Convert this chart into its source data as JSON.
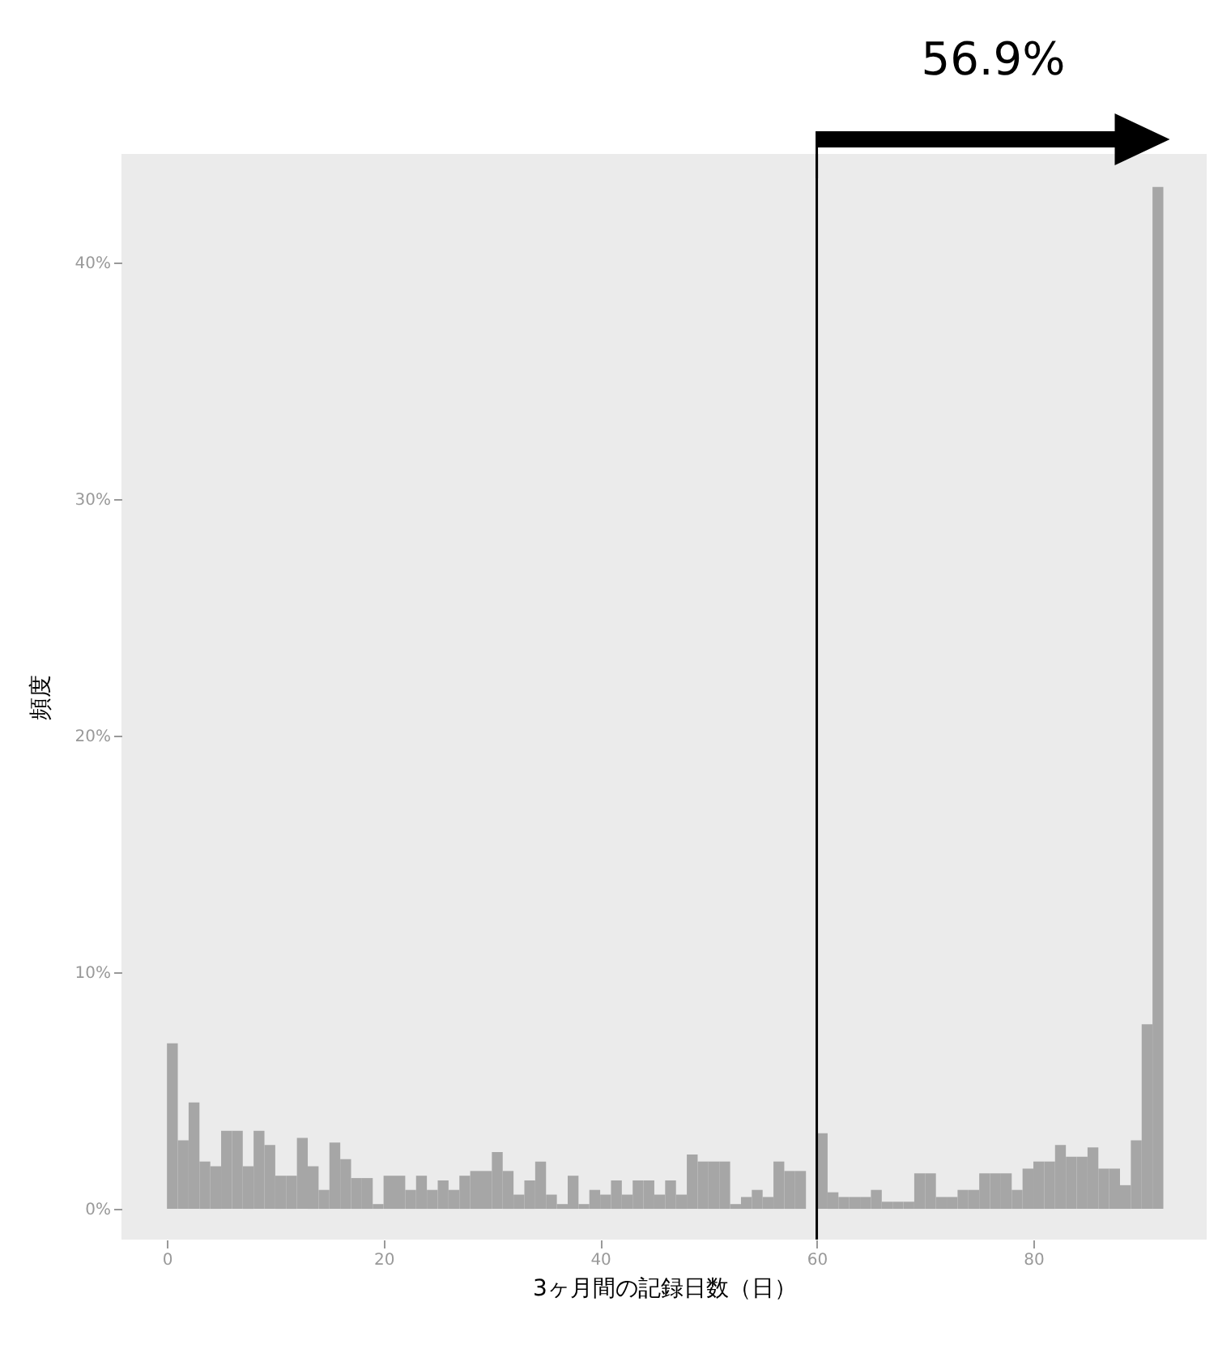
{
  "chart_data": {
    "type": "histogram",
    "xlabel": "3ヶ月間の記録日数（日）",
    "ylabel": "頻度",
    "bins": [
      0,
      1,
      2,
      3,
      4,
      5,
      6,
      7,
      8,
      9,
      10,
      11,
      12,
      13,
      14,
      15,
      16,
      17,
      18,
      19,
      20,
      21,
      22,
      23,
      24,
      25,
      26,
      27,
      28,
      29,
      30,
      31,
      32,
      33,
      34,
      35,
      36,
      37,
      38,
      39,
      40,
      41,
      42,
      43,
      44,
      45,
      46,
      47,
      48,
      49,
      50,
      51,
      52,
      53,
      54,
      55,
      56,
      57,
      58,
      59,
      60,
      61,
      62,
      63,
      64,
      65,
      66,
      67,
      68,
      69,
      70,
      71,
      72,
      73,
      74,
      75,
      76,
      77,
      78,
      79,
      80,
      81,
      82,
      83,
      84,
      85,
      86,
      87,
      88,
      89,
      90,
      91,
      92
    ],
    "values": [
      7.0,
      2.9,
      4.5,
      2.0,
      1.8,
      3.3,
      3.3,
      1.8,
      3.3,
      2.7,
      1.4,
      1.4,
      3.0,
      1.8,
      0.8,
      2.8,
      2.1,
      1.3,
      1.3,
      0.2,
      1.4,
      1.4,
      0.8,
      1.4,
      0.8,
      1.2,
      0.8,
      1.4,
      1.6,
      1.6,
      2.4,
      1.6,
      0.6,
      1.2,
      2.0,
      0.6,
      0.2,
      1.4,
      0.2,
      0.8,
      0.6,
      1.2,
      0.6,
      1.2,
      1.2,
      0.6,
      1.2,
      0.6,
      2.3,
      2.0,
      2.0,
      2.0,
      0.2,
      0.5,
      0.8,
      0.5,
      2.0,
      1.6,
      1.6,
      0.0,
      3.2,
      0.7,
      0.5,
      0.5,
      0.5,
      0.8,
      0.3,
      0.3,
      0.3,
      1.5,
      1.5,
      0.5,
      0.5,
      0.8,
      0.8,
      1.5,
      1.5,
      1.5,
      0.8,
      1.7,
      2.0,
      2.0,
      2.7,
      2.2,
      2.2,
      2.6,
      1.7,
      1.7,
      1.0,
      2.9,
      7.8,
      43.2
    ],
    "color": "#a6a6a6",
    "xlim": [
      -4.2,
      96
    ],
    "ylim": [
      -1.3,
      44.6
    ],
    "xticks": [
      0,
      20,
      40,
      60,
      80
    ],
    "yticks": [
      {
        "value": 0,
        "label": "0%"
      },
      {
        "value": 10,
        "label": "10%"
      },
      {
        "value": 20,
        "label": "20%"
      },
      {
        "value": 30,
        "label": "30%"
      },
      {
        "value": 40,
        "label": "40%"
      }
    ],
    "grid": false,
    "ref_lines": [
      {
        "axis": "x",
        "value": 60,
        "color": "#000000"
      }
    ],
    "annotations": [
      "56.9%"
    ]
  }
}
